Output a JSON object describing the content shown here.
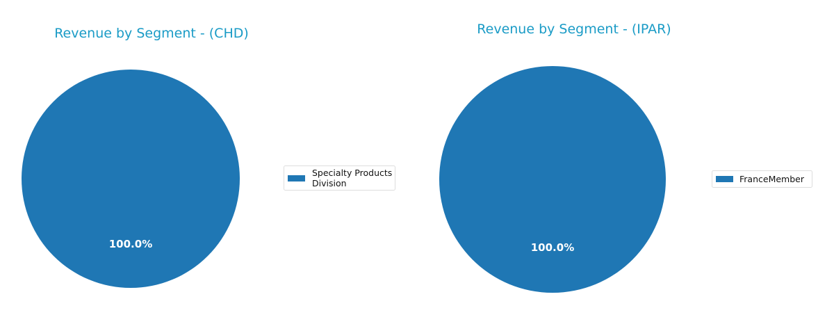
{
  "chart_data": [
    {
      "type": "pie",
      "title": "Revenue by Segment - (CHD)",
      "labels": [
        "Specialty Products Division"
      ],
      "legend_lines": [
        "Specialty Products",
        "Division"
      ],
      "values": [
        100.0
      ],
      "pct_labels": [
        "100.0%"
      ],
      "colors": [
        "#1f77b4"
      ],
      "legend_placement": "right"
    },
    {
      "type": "pie",
      "title": "Revenue by Segment - (IPAR)",
      "labels": [
        "FranceMember"
      ],
      "legend_lines": [
        "FranceMember"
      ],
      "values": [
        100.0
      ],
      "pct_labels": [
        "100.0%"
      ],
      "colors": [
        "#1f77b4"
      ],
      "legend_placement": "right"
    }
  ]
}
